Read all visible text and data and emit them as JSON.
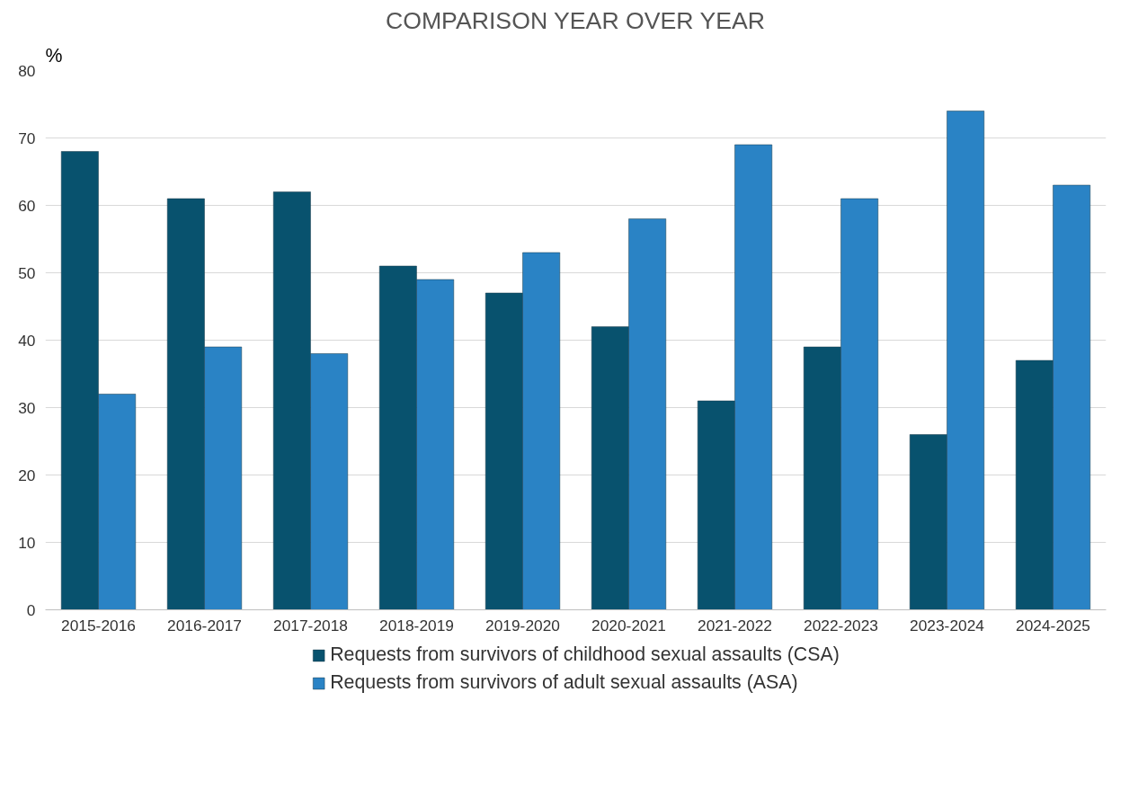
{
  "chart_data": {
    "type": "bar",
    "title": "COMPARISON YEAR OVER YEAR",
    "ylabel": "%",
    "categories": [
      "2015-2016",
      "2016-2017",
      "2017-2018",
      "2018-2019",
      "2019-2020",
      "2020-2021",
      "2021-2022",
      "2022-2023",
      "2023-2024",
      "2024-2025"
    ],
    "series": [
      {
        "name": "Requests from survivors of childhood sexual assaults (CSA)",
        "color": "#08526e",
        "values": [
          68,
          61,
          62,
          51,
          47,
          42,
          31,
          39,
          26,
          37
        ]
      },
      {
        "name": "Requests from survivors of adult sexual assaults (ASA)",
        "color": "#2a83c5",
        "values": [
          32,
          39,
          38,
          49,
          53,
          58,
          69,
          61,
          74,
          63
        ]
      }
    ],
    "ylim": [
      0,
      80
    ],
    "yticks": [
      0,
      10,
      20,
      30,
      40,
      50,
      60,
      70,
      80
    ],
    "grid": "y",
    "legend": "bottom"
  }
}
